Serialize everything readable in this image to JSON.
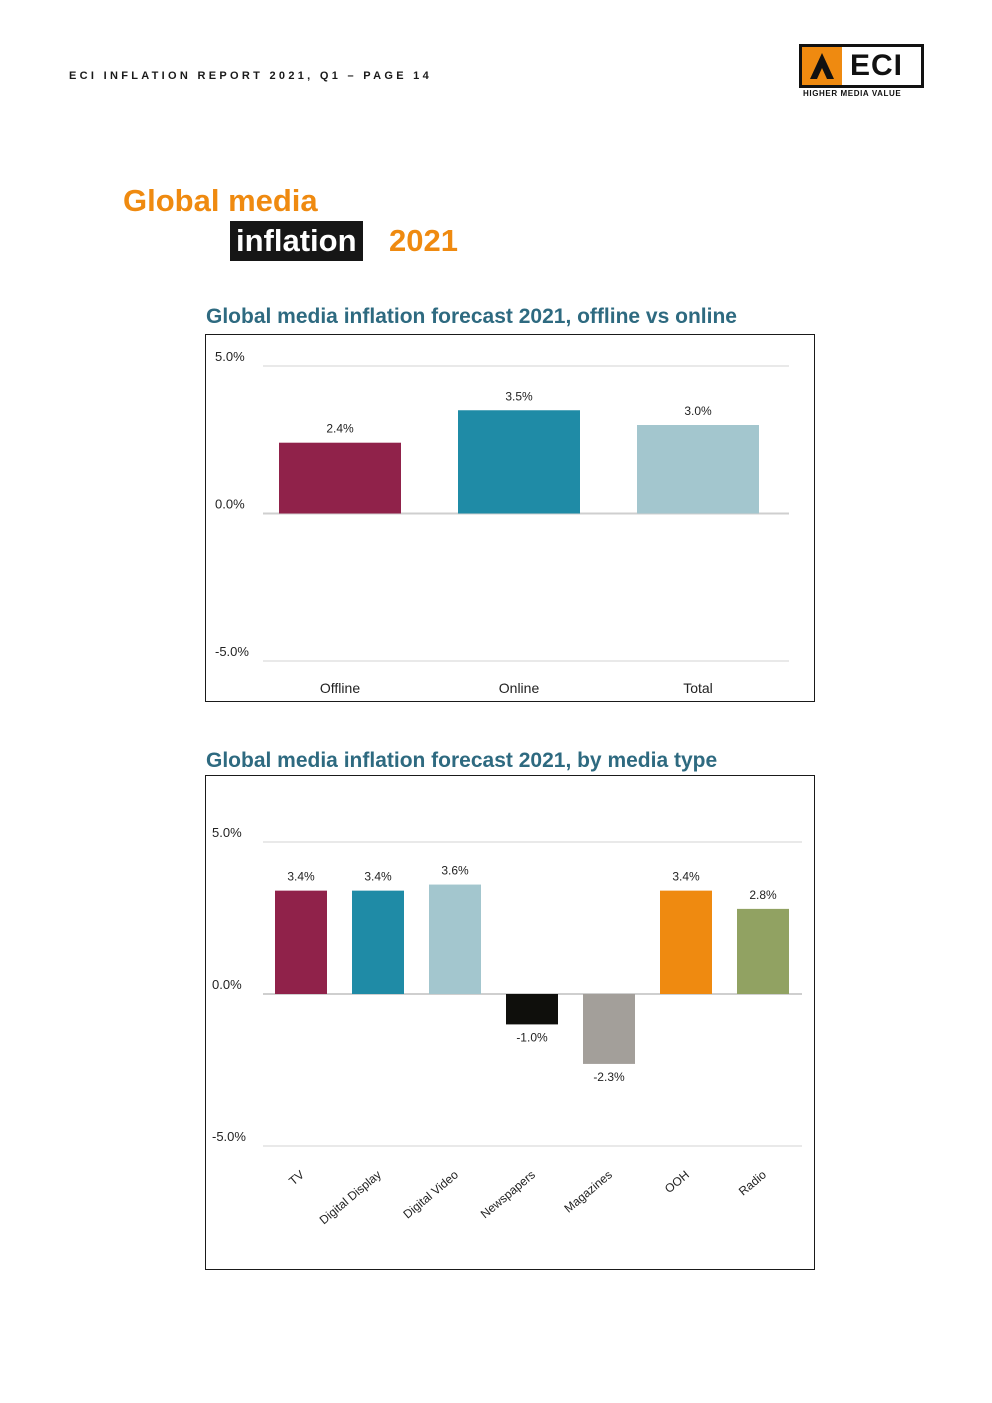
{
  "header": {
    "text": "ECI INFLATION REPORT 2021, Q1  – PAGE 14"
  },
  "logo": {
    "text": "ECI",
    "tagline": "HIGHER MEDIA VALUE",
    "brand_color": "#ef8a10"
  },
  "page_title": {
    "line1": "Global media",
    "line2_highlight": "inflation",
    "line2_year": "2021"
  },
  "colors": {
    "maroon": "#90224a",
    "teal": "#1f8ba6",
    "light_blue": "#a3c6ce",
    "black": "#0f0f0c",
    "grey": "#a39f9a",
    "orange": "#ef8a10",
    "olive": "#91a262",
    "title_color": "#2e6a80"
  },
  "chart_data": [
    {
      "type": "bar",
      "title": "Global media inflation forecast 2021, offline vs online",
      "categories": [
        "Offline",
        "Online",
        "Total"
      ],
      "values": [
        2.4,
        3.5,
        3.0
      ],
      "value_labels": [
        "2.4%",
        "3.5%",
        "3.0%"
      ],
      "bar_colors": [
        "#90224a",
        "#1f8ba6",
        "#a3c6ce"
      ],
      "ylim": [
        -5,
        5
      ],
      "yticks": [
        5,
        0,
        -5
      ],
      "ytick_labels": [
        "5.0%",
        "0.0%",
        "-5.0%"
      ],
      "grid": true,
      "legend": "none"
    },
    {
      "type": "bar",
      "title": "Global media inflation forecast 2021, by media type",
      "categories": [
        "TV",
        "Digital Display",
        "Digital Video",
        "Newspapers",
        "Magazines",
        "OOH",
        "Radio"
      ],
      "values": [
        3.4,
        3.4,
        3.6,
        -1.0,
        -2.3,
        3.4,
        2.8
      ],
      "value_labels": [
        "3.4%",
        "3.4%",
        "3.6%",
        "-1.0%",
        "-2.3%",
        "3.4%",
        "2.8%"
      ],
      "bar_colors": [
        "#90224a",
        "#1f8ba6",
        "#a3c6ce",
        "#0f0f0c",
        "#a39f9a",
        "#ef8a10",
        "#91a262"
      ],
      "ylim": [
        -5,
        5
      ],
      "yticks": [
        5,
        0,
        -5
      ],
      "ytick_labels": [
        "5.0%",
        "0.0%",
        "-5.0%"
      ],
      "grid": true,
      "legend": "none"
    }
  ]
}
